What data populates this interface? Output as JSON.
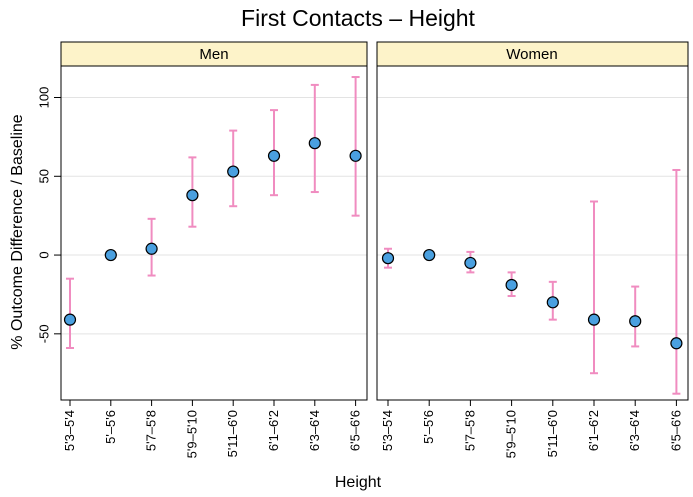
{
  "chart_data": {
    "type": "scatter",
    "title": "First Contacts – Height",
    "xlabel": "Height",
    "ylabel": "% Outcome Difference / Baseline",
    "categories": [
      "5'3–5'4",
      "5'–5'6",
      "5'7–5'8",
      "5'9–5'10",
      "5'11–6'0",
      "6'1–6'2",
      "6'3–6'4",
      "6'5–6'6"
    ],
    "ylim": [
      -92,
      120
    ],
    "yticks": [
      -50,
      0,
      50,
      100
    ],
    "ytick_labels": [
      "-50",
      "0",
      "50",
      "100"
    ],
    "grid": true,
    "error_bar_color": "#f08cc0",
    "point_color": "#4aa0e0",
    "strip_color": "#fdf3c9",
    "panels": [
      {
        "name": "Men",
        "values": [
          -41,
          0,
          4,
          38,
          53,
          63,
          71,
          63
        ],
        "lower": [
          -59,
          0,
          -13,
          18,
          31,
          38,
          40,
          25
        ],
        "upper": [
          -15,
          0,
          23,
          62,
          79,
          92,
          108,
          113
        ]
      },
      {
        "name": "Women",
        "values": [
          -2,
          0,
          -5,
          -19,
          -30,
          -41,
          -42,
          -56
        ],
        "lower": [
          -8,
          0,
          -11,
          -26,
          -41,
          -75,
          -58,
          -88
        ],
        "upper": [
          4,
          0,
          2,
          -11,
          -17,
          34,
          -20,
          54
        ]
      }
    ]
  }
}
